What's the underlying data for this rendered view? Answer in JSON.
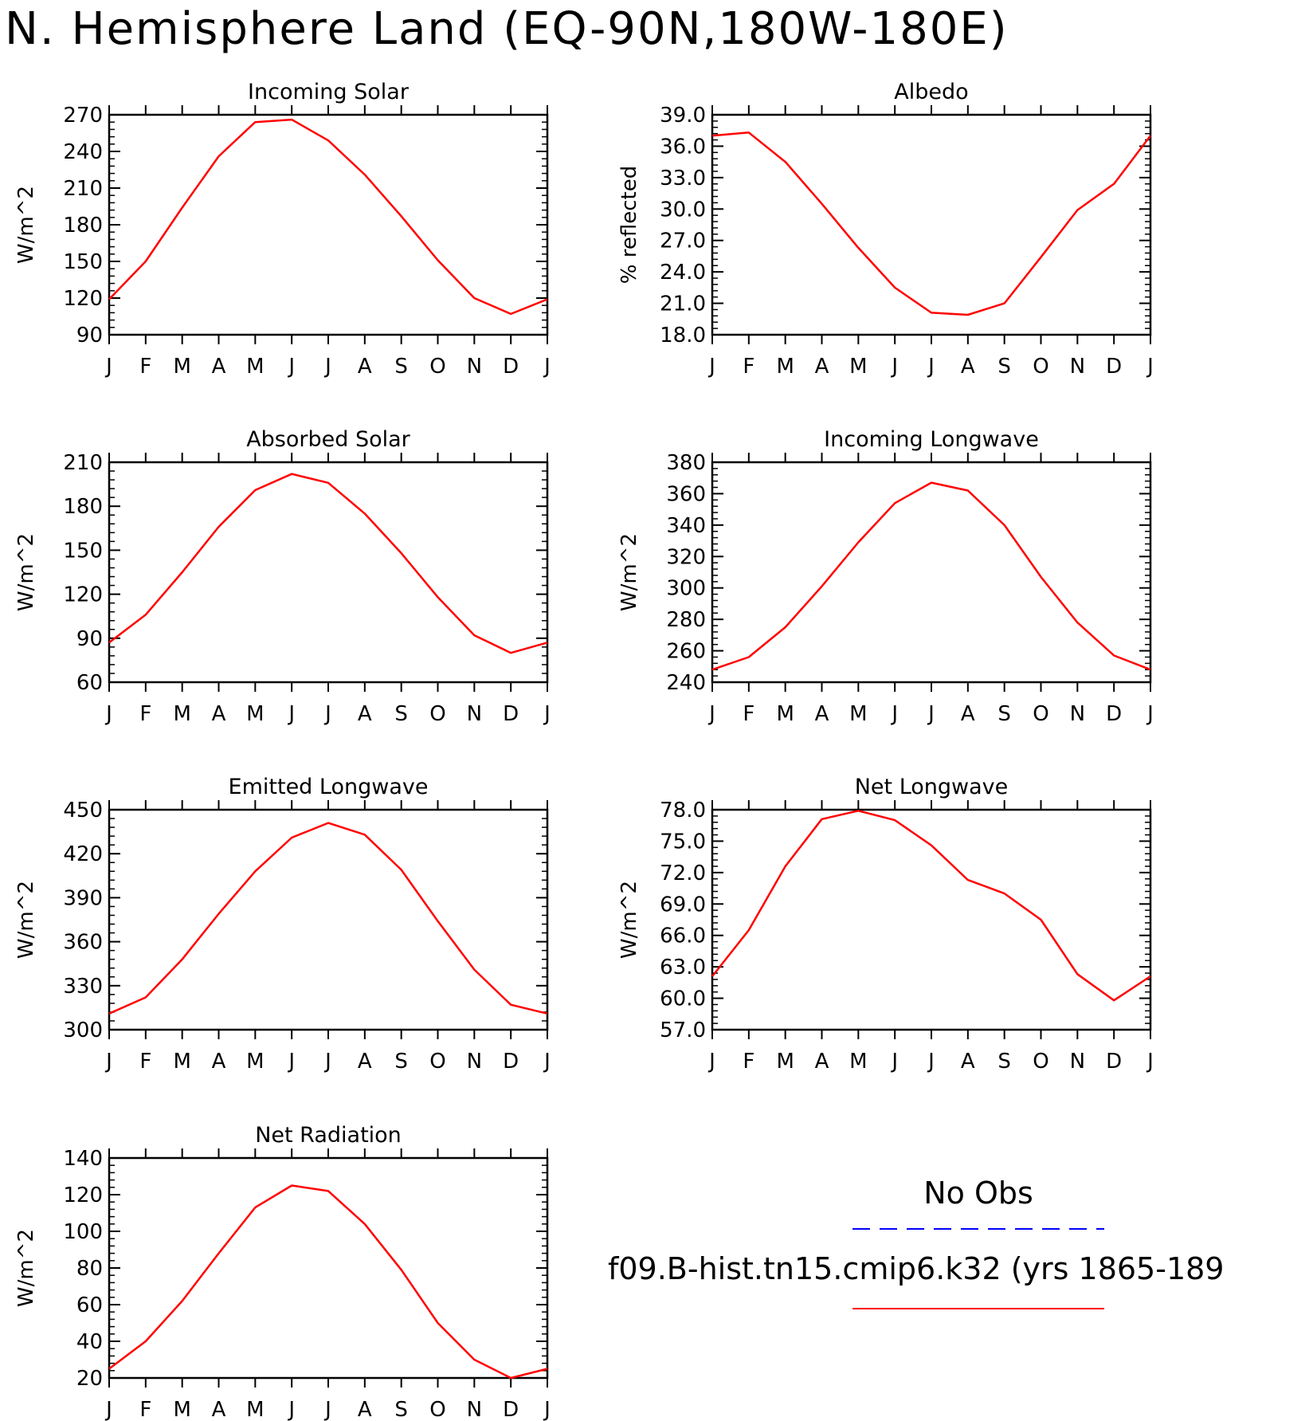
{
  "title": "N. Hemisphere Land (EQ-90N,180W-180E)",
  "colors": {
    "model": "#ff0000",
    "obs": "#0000ff",
    "axes": "#000000"
  },
  "months": [
    "J",
    "F",
    "M",
    "A",
    "M",
    "J",
    "J",
    "A",
    "S",
    "O",
    "N",
    "D",
    "J"
  ],
  "legend": {
    "obs_label": "No Obs",
    "model_label": "f09.B-hist.tn15.cmip6.k32 (yrs 1865-189"
  },
  "chart_data": [
    {
      "type": "line",
      "title": "Incoming Solar",
      "ylabel": "W/m^2",
      "ylim": [
        90,
        270
      ],
      "yticks": [
        90,
        120,
        150,
        180,
        210,
        240,
        270
      ],
      "ytick_labels": [
        "90",
        "120",
        "150",
        "180",
        "210",
        "240",
        "270"
      ],
      "x": [
        "J",
        "F",
        "M",
        "A",
        "M",
        "J",
        "J",
        "A",
        "S",
        "O",
        "N",
        "D",
        "J"
      ],
      "series": [
        {
          "values": [
            119,
            150,
            194,
            236,
            264,
            266,
            249,
            221,
            187,
            151,
            120,
            107,
            119
          ]
        }
      ]
    },
    {
      "type": "line",
      "title": "Albedo",
      "ylabel": "% reflected",
      "ylim": [
        18.0,
        39.0
      ],
      "yticks": [
        18,
        21,
        24,
        27,
        30,
        33,
        36,
        39
      ],
      "ytick_labels": [
        "18.0",
        "21.0",
        "24.0",
        "27.0",
        "30.0",
        "33.0",
        "36.0",
        "39.0"
      ],
      "x": [
        "J",
        "F",
        "M",
        "A",
        "M",
        "J",
        "J",
        "A",
        "S",
        "O",
        "N",
        "D",
        "J"
      ],
      "series": [
        {
          "values": [
            37.0,
            37.3,
            34.5,
            30.5,
            26.3,
            22.5,
            20.1,
            19.9,
            21.0,
            25.4,
            29.9,
            32.4,
            37.0
          ]
        }
      ]
    },
    {
      "type": "line",
      "title": "Absorbed Solar",
      "ylabel": "W/m^2",
      "ylim": [
        60,
        210
      ],
      "yticks": [
        60,
        90,
        120,
        150,
        180,
        210
      ],
      "ytick_labels": [
        "60",
        "90",
        "120",
        "150",
        "180",
        "210"
      ],
      "x": [
        "J",
        "F",
        "M",
        "A",
        "M",
        "J",
        "J",
        "A",
        "S",
        "O",
        "N",
        "D",
        "J"
      ],
      "series": [
        {
          "values": [
            87,
            106,
            135,
            166,
            191,
            202,
            196,
            175,
            148,
            118,
            92,
            80,
            87
          ]
        }
      ]
    },
    {
      "type": "line",
      "title": "Incoming Longwave",
      "ylabel": "W/m^2",
      "ylim": [
        240,
        380
      ],
      "yticks": [
        240,
        260,
        280,
        300,
        320,
        340,
        360,
        380
      ],
      "ytick_labels": [
        "240",
        "260",
        "280",
        "300",
        "320",
        "340",
        "360",
        "380"
      ],
      "x": [
        "J",
        "F",
        "M",
        "A",
        "M",
        "J",
        "J",
        "A",
        "S",
        "O",
        "N",
        "D",
        "J"
      ],
      "series": [
        {
          "values": [
            248,
            256,
            275,
            301,
            329,
            354,
            367,
            362,
            340,
            307,
            278,
            257,
            248
          ]
        }
      ]
    },
    {
      "type": "line",
      "title": "Emitted Longwave",
      "ylabel": "W/m^2",
      "ylim": [
        300,
        450
      ],
      "yticks": [
        300,
        330,
        360,
        390,
        420,
        450
      ],
      "ytick_labels": [
        "300",
        "330",
        "360",
        "390",
        "420",
        "450"
      ],
      "x": [
        "J",
        "F",
        "M",
        "A",
        "M",
        "J",
        "J",
        "A",
        "S",
        "O",
        "N",
        "D",
        "J"
      ],
      "series": [
        {
          "values": [
            311,
            322,
            348,
            379,
            408,
            431,
            441,
            433,
            409,
            374,
            341,
            317,
            311
          ]
        }
      ]
    },
    {
      "type": "line",
      "title": "Net Longwave",
      "ylabel": "W/m^2",
      "ylim": [
        57.0,
        78.0
      ],
      "yticks": [
        57,
        60,
        63,
        66,
        69,
        72,
        75,
        78
      ],
      "ytick_labels": [
        "57.0",
        "60.0",
        "63.0",
        "66.0",
        "69.0",
        "72.0",
        "75.0",
        "78.0"
      ],
      "x": [
        "J",
        "F",
        "M",
        "A",
        "M",
        "J",
        "J",
        "A",
        "S",
        "O",
        "N",
        "D",
        "J"
      ],
      "series": [
        {
          "values": [
            62.1,
            66.5,
            72.6,
            77.1,
            77.9,
            77.0,
            74.6,
            71.3,
            70.0,
            67.5,
            62.3,
            59.8,
            62.1
          ]
        }
      ]
    },
    {
      "type": "line",
      "title": "Net Radiation",
      "ylabel": "W/m^2",
      "ylim": [
        20,
        140
      ],
      "yticks": [
        20,
        40,
        60,
        80,
        100,
        120,
        140
      ],
      "ytick_labels": [
        "20",
        "40",
        "60",
        "80",
        "100",
        "120",
        "140"
      ],
      "x": [
        "J",
        "F",
        "M",
        "A",
        "M",
        "J",
        "J",
        "A",
        "S",
        "O",
        "N",
        "D",
        "J"
      ],
      "series": [
        {
          "values": [
            25,
            40,
            62,
            88,
            113,
            125,
            122,
            104,
            79,
            50,
            30,
            20,
            25
          ]
        }
      ]
    }
  ]
}
